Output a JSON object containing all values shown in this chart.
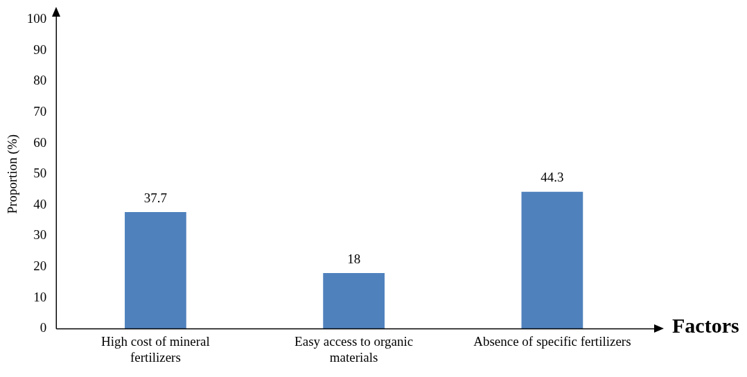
{
  "chart_data": {
    "type": "bar",
    "xlabel": "Factors",
    "ylabel": "Proportion (%)",
    "categories": [
      "High cost of mineral fertilizers",
      "Easy access to organic materials",
      "Absence of specific fertilizers"
    ],
    "values": [
      37.7,
      18,
      44.3
    ],
    "color": "#4f81bd",
    "ylim": [
      0,
      100
    ],
    "yticks": [
      0,
      10,
      20,
      30,
      40,
      50,
      60,
      70,
      80,
      90,
      100
    ],
    "grid": false,
    "legend": false,
    "data_labels": true
  }
}
